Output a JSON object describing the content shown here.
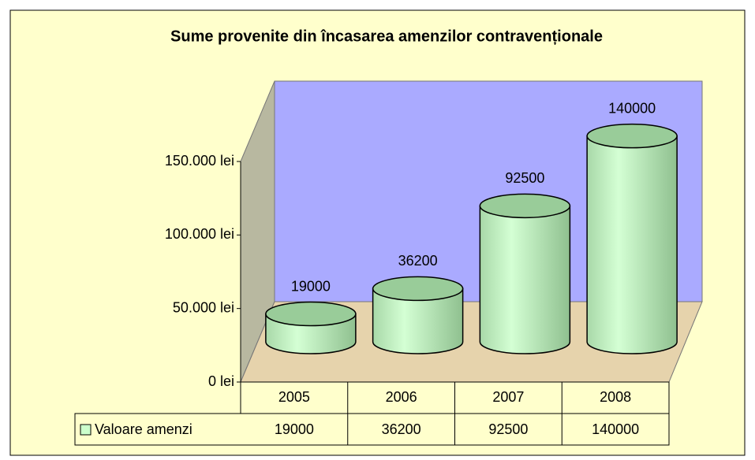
{
  "chart_data": {
    "type": "bar3d-cylinder",
    "title": "Sume provenite din încasarea amenzilor contravenționale",
    "categories": [
      "2005",
      "2006",
      "2007",
      "2008"
    ],
    "series": [
      {
        "name": "Valoare amenzi",
        "color": "#ccffcc",
        "values": [
          19000,
          36200,
          92500,
          140000
        ]
      }
    ],
    "ylim": [
      0,
      150000
    ],
    "yticks": [
      {
        "value": 0,
        "label": "0 lei"
      },
      {
        "value": 50000,
        "label": "50.000 lei"
      },
      {
        "value": 100000,
        "label": "100.000 lei"
      },
      {
        "value": 150000,
        "label": "150.000 lei"
      }
    ],
    "data_table": true
  }
}
